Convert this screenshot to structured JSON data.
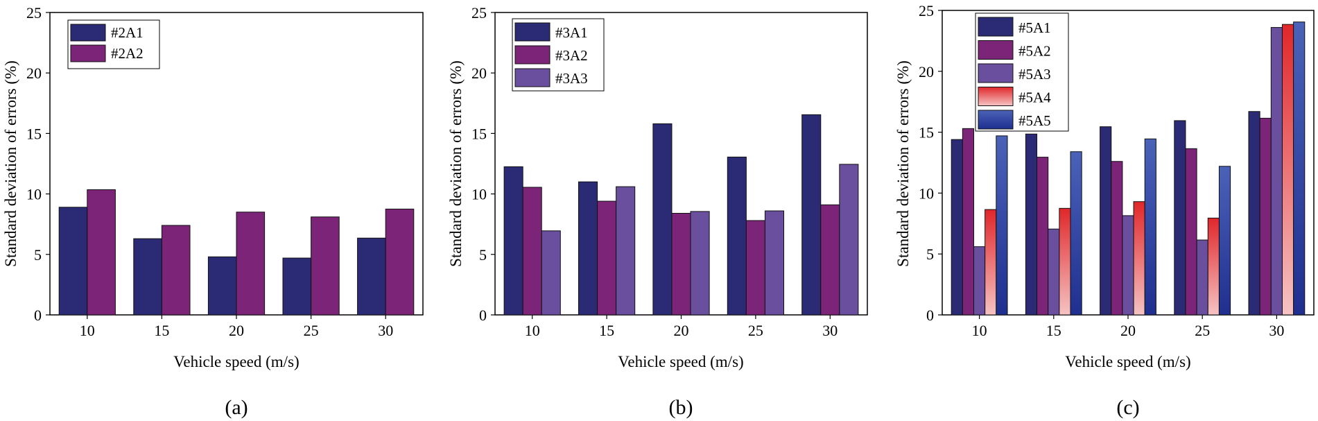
{
  "chart_data": [
    {
      "type": "bar",
      "caption": "(a)",
      "xlabel": "Vehicle speed (m/s)",
      "ylabel": "Standard deviation of errors (%)",
      "categories": [
        "10",
        "15",
        "20",
        "25",
        "30"
      ],
      "ylim": [
        0,
        25
      ],
      "yticks": [
        "0",
        "5",
        "10",
        "15",
        "20",
        "25"
      ],
      "legend_position": "top-left",
      "series": [
        {
          "name": "#2A1",
          "color": "#2b2a75",
          "values": [
            8.9,
            6.3,
            4.8,
            4.7,
            6.35
          ]
        },
        {
          "name": "#2A2",
          "color": "#7b2478",
          "values": [
            10.35,
            7.4,
            8.5,
            8.1,
            8.75
          ]
        }
      ]
    },
    {
      "type": "bar",
      "caption": "(b)",
      "xlabel": "Vehicle speed (m/s)",
      "ylabel": "Standard deviation of errors (%)",
      "categories": [
        "10",
        "15",
        "20",
        "25",
        "30"
      ],
      "ylim": [
        0,
        25
      ],
      "yticks": [
        "0",
        "5",
        "10",
        "15",
        "20",
        "25"
      ],
      "legend_position": "top-left",
      "series": [
        {
          "name": "#3A1",
          "color": "#2b2a75",
          "values": [
            12.25,
            11.0,
            15.8,
            13.05,
            16.55
          ]
        },
        {
          "name": "#3A2",
          "color": "#7b2478",
          "values": [
            10.55,
            9.4,
            8.4,
            7.8,
            9.1
          ]
        },
        {
          "name": "#3A3",
          "color": "#6a4f9e",
          "values": [
            6.95,
            10.6,
            8.55,
            8.6,
            12.45
          ]
        }
      ]
    },
    {
      "type": "bar",
      "caption": "(c)",
      "xlabel": "Vehicle speed (m/s)",
      "ylabel": "Standard deviation of errors (%)",
      "categories": [
        "10",
        "15",
        "20",
        "25",
        "30"
      ],
      "ylim": [
        0,
        25
      ],
      "yticks": [
        "0",
        "5",
        "10",
        "15",
        "20",
        "25"
      ],
      "legend_position": "top-left",
      "series": [
        {
          "name": "#5A1",
          "color": "#2b2a75",
          "values": [
            14.4,
            14.85,
            15.45,
            15.95,
            16.7
          ]
        },
        {
          "name": "#5A2",
          "color": "#7b2478",
          "values": [
            15.3,
            12.95,
            12.6,
            13.65,
            16.15
          ]
        },
        {
          "name": "#5A3",
          "color": "#6a4f9e",
          "values": [
            5.6,
            7.05,
            8.15,
            6.15,
            23.6
          ]
        },
        {
          "name": "#5A4",
          "color": "#e0272a",
          "values": [
            8.65,
            8.75,
            9.3,
            7.95,
            23.85
          ]
        },
        {
          "name": "#5A5",
          "color": "#2d4aa3",
          "values": [
            14.7,
            13.4,
            14.45,
            12.2,
            24.05
          ]
        }
      ]
    }
  ]
}
